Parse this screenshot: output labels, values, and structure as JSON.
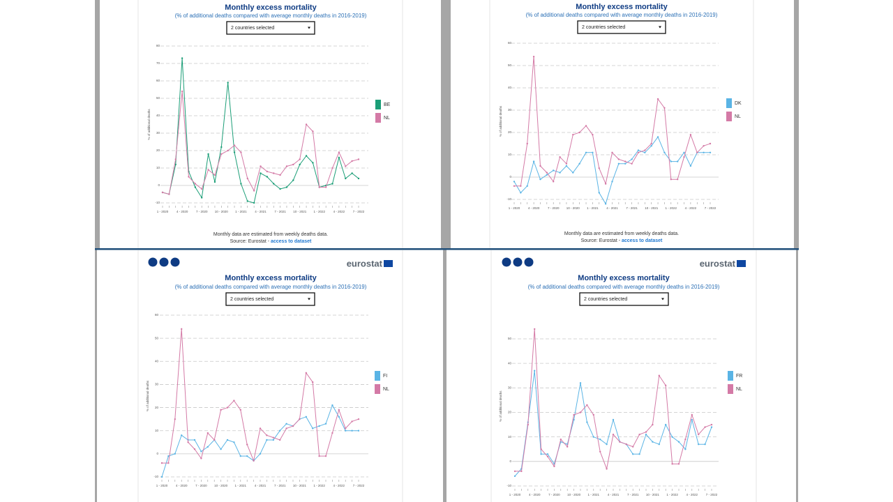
{
  "chart_data": [
    {
      "type": "line",
      "title": "Monthly excess mortality",
      "subtitle": "(% of additional deaths compared with average monthly deaths in 2016-2019)",
      "dropdown": "2 countries selected",
      "y_label": "% of additional deaths",
      "categories": [
        "1 - 2020",
        null,
        null,
        "4 - 2020",
        null,
        null,
        "7 - 2020",
        null,
        null,
        "10 - 2020",
        null,
        null,
        "1 - 2021",
        null,
        null,
        "4 - 2021",
        null,
        null,
        "7 - 2021",
        null,
        null,
        "10 - 2021",
        null,
        null,
        "1 - 2022",
        null,
        null,
        "4 - 2022",
        null,
        null,
        "7 - 2022"
      ],
      "series": [
        {
          "name": "BE",
          "color": "#1b9e77",
          "values": [
            -4,
            -5,
            12,
            73,
            8,
            -1,
            -7,
            18,
            2,
            22,
            59,
            19,
            1,
            -9,
            -10,
            7,
            5,
            1,
            -2,
            -1,
            3,
            12,
            17,
            13,
            -1,
            0,
            1,
            16,
            4,
            7,
            4
          ]
        },
        {
          "name": "NL",
          "color": "#d47aa6",
          "values": [
            -4,
            -5,
            15,
            54,
            5,
            1,
            -2,
            9,
            6,
            18,
            20,
            23,
            19,
            4,
            -3,
            11,
            8,
            7,
            6,
            11,
            12,
            15,
            35,
            31,
            -1,
            -1,
            10,
            19,
            11,
            14,
            15
          ]
        }
      ],
      "ylim": [
        -10,
        80
      ],
      "yticks": [
        -10,
        0,
        10,
        20,
        30,
        40,
        50,
        60,
        70,
        80
      ],
      "grid": true,
      "footnote": "Monthly data are estimated from weekly deaths data.",
      "source": "Source: Eurostat - ",
      "source_link": "access to dataset"
    },
    {
      "type": "line",
      "title": "Monthly excess mortality",
      "subtitle": "(% of additional deaths compared with average monthly deaths in 2016-2019)",
      "dropdown": "2 countries selected",
      "y_label": "% of additional deaths",
      "categories": [
        "1 - 2020",
        null,
        null,
        "4 - 2020",
        null,
        null,
        "7 - 2020",
        null,
        null,
        "10 - 2020",
        null,
        null,
        "1 - 2021",
        null,
        null,
        "4 - 2021",
        null,
        null,
        "7 - 2021",
        null,
        null,
        "10 - 2021",
        null,
        null,
        "1 - 2022",
        null,
        null,
        "4 - 2022",
        null,
        null,
        "7 - 2022"
      ],
      "series": [
        {
          "name": "DK",
          "color": "#5ab4e5",
          "values": [
            -2,
            -7,
            -4,
            7,
            -1,
            1,
            3,
            2,
            5,
            2,
            6,
            11,
            11,
            -7,
            -12,
            -2,
            6,
            6,
            8,
            12,
            11,
            14,
            18,
            11,
            7,
            7,
            11,
            5,
            11,
            11,
            11
          ]
        },
        {
          "name": "NL",
          "color": "#d47aa6",
          "values": [
            -4,
            -4,
            15,
            54,
            5,
            2,
            -2,
            9,
            6,
            19,
            20,
            23,
            19,
            4,
            -3,
            11,
            8,
            7,
            6,
            11,
            12,
            15,
            35,
            31,
            -1,
            -1,
            9,
            19,
            11,
            14,
            15
          ]
        }
      ],
      "ylim": [
        -10,
        60
      ],
      "yticks": [
        -10,
        0,
        10,
        20,
        30,
        40,
        50,
        60
      ],
      "grid": true,
      "footnote": "Monthly data are estimated from weekly deaths data.",
      "source": "Source: Eurostat - ",
      "source_link": "access to dataset"
    },
    {
      "type": "line",
      "title": "Monthly excess mortality",
      "subtitle": "(% of additional deaths compared with average monthly deaths in 2016-2019)",
      "dropdown": "2 countries selected",
      "y_label": "% of additional deaths",
      "logo": "eurostat",
      "categories": [
        "1 - 2020",
        null,
        null,
        "4 - 2020",
        null,
        null,
        "7 - 2020",
        null,
        null,
        "10 - 2020",
        null,
        null,
        "1 - 2021",
        null,
        null,
        "4 - 2021",
        null,
        null,
        "7 - 2021",
        null,
        null,
        "10 - 2021",
        null,
        null,
        "1 - 2022",
        null,
        null,
        "4 - 2022",
        null,
        null,
        "7 - 2022"
      ],
      "series": [
        {
          "name": "FI",
          "color": "#5ab4e5",
          "values": [
            -10,
            -1,
            0,
            8,
            6,
            6,
            1,
            3,
            6,
            2,
            6,
            5,
            -1,
            -1,
            -3,
            0,
            6,
            6,
            10,
            13,
            12,
            15,
            16,
            11,
            12,
            13,
            21,
            16,
            10,
            10,
            10
          ]
        },
        {
          "name": "NL",
          "color": "#d47aa6",
          "values": [
            -4,
            -4,
            15,
            54,
            5,
            2,
            -2,
            9,
            6,
            19,
            20,
            23,
            19,
            4,
            -3,
            11,
            8,
            7,
            6,
            11,
            12,
            15,
            35,
            31,
            -1,
            -1,
            9,
            19,
            11,
            14,
            15
          ]
        }
      ],
      "ylim": [
        -10,
        60
      ],
      "yticks": [
        -10,
        0,
        10,
        20,
        30,
        40,
        50,
        60
      ],
      "grid": true
    },
    {
      "type": "line",
      "title": "Monthly excess mortality",
      "subtitle": "(% of additional deaths compared with average monthly deaths in 2016-2019)",
      "dropdown": "2 countries selected",
      "y_label": "% of additional deaths",
      "logo": "eurostat",
      "categories": [
        "1 - 2020",
        null,
        null,
        "4 - 2020",
        null,
        null,
        "7 - 2020",
        null,
        null,
        "10 - 2020",
        null,
        null,
        "1 - 2021",
        null,
        null,
        "4 - 2021",
        null,
        null,
        "7 - 2021",
        null,
        null,
        "10 - 2021",
        null,
        null,
        "1 - 2022",
        null,
        null,
        "4 - 2022",
        null,
        null,
        "7 - 2022"
      ],
      "series": [
        {
          "name": "FR",
          "color": "#5ab4e5",
          "values": [
            -6,
            -3,
            16,
            37,
            3,
            3,
            -1,
            8,
            7,
            17,
            32,
            16,
            10,
            9,
            7,
            17,
            8,
            7,
            3,
            3,
            11,
            8,
            7,
            15,
            10,
            8,
            5,
            17,
            7,
            7,
            14
          ]
        },
        {
          "name": "NL",
          "color": "#d47aa6",
          "values": [
            -4,
            -4,
            15,
            54,
            5,
            2,
            -2,
            9,
            6,
            19,
            20,
            23,
            19,
            4,
            -3,
            11,
            8,
            7,
            6,
            11,
            12,
            15,
            35,
            31,
            -1,
            -1,
            9,
            19,
            11,
            14,
            15
          ]
        }
      ],
      "ylim": [
        -10,
        55
      ],
      "yticks": [
        -10,
        0,
        10,
        20,
        30,
        40,
        50
      ],
      "grid": true
    }
  ]
}
